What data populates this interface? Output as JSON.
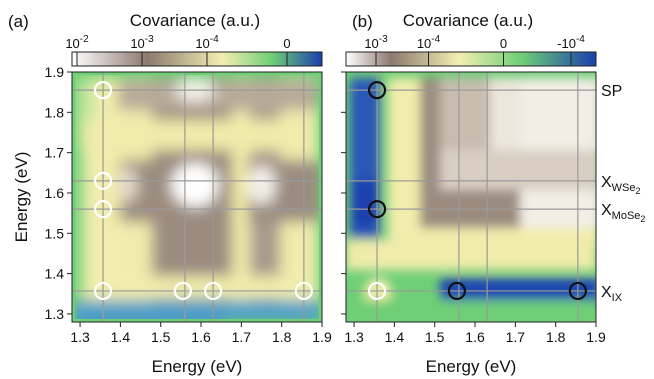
{
  "chart_data": [
    {
      "type": "heatmap",
      "panel_label": "(a)",
      "colorbar": {
        "title": "Covariance (a.u.)",
        "tick_labels": [
          {
            "base": "10",
            "exp": "-2"
          },
          {
            "base": "10",
            "exp": "-3"
          },
          {
            "base": "10",
            "exp": "-4"
          },
          {
            "base": "0",
            "exp": ""
          }
        ],
        "colors": [
          "#ffffff",
          "#8c7a70",
          "#f3eeb2",
          "#6fcf76",
          "#1a3fae"
        ]
      },
      "xlabel": "Energy (eV)",
      "ylabel": "Energy (eV)",
      "xlim": [
        1.28,
        1.9
      ],
      "ylim": [
        1.28,
        1.9
      ],
      "xticks": [
        "1.3",
        "1.4",
        "1.5",
        "1.6",
        "1.7",
        "1.8",
        "1.9"
      ],
      "yticks": [
        "1.3",
        "1.4",
        "1.5",
        "1.6",
        "1.7",
        "1.8",
        "1.9"
      ],
      "grid_lines": [
        1.357,
        1.56,
        1.63,
        1.855
      ],
      "markers": [
        {
          "x": 1.357,
          "y": 1.855,
          "style": "white"
        },
        {
          "x": 1.357,
          "y": 1.63,
          "style": "white"
        },
        {
          "x": 1.357,
          "y": 1.56,
          "style": "white"
        },
        {
          "x": 1.357,
          "y": 1.357,
          "style": "white"
        },
        {
          "x": 1.555,
          "y": 1.357,
          "style": "white"
        },
        {
          "x": 1.63,
          "y": 1.357,
          "style": "white"
        },
        {
          "x": 1.855,
          "y": 1.357,
          "style": "white"
        }
      ]
    },
    {
      "type": "heatmap",
      "panel_label": "(b)",
      "colorbar": {
        "title": "Covariance (a.u.)",
        "tick_labels": [
          {
            "base": "10",
            "exp": "-3"
          },
          {
            "base": "10",
            "exp": "-4"
          },
          {
            "base": "0",
            "exp": ""
          },
          {
            "base": "-10",
            "exp": "-4"
          }
        ],
        "colors": [
          "#ffffff",
          "#8c7a70",
          "#f3eeb2",
          "#6fcf76",
          "#1a3fae"
        ]
      },
      "xlabel": "Energy (eV)",
      "ylabel": "",
      "xlim": [
        1.28,
        1.9
      ],
      "ylim": [
        1.28,
        1.9
      ],
      "xticks": [
        "1.3",
        "1.4",
        "1.5",
        "1.6",
        "1.7",
        "1.8",
        "1.9"
      ],
      "grid_lines": [
        1.357,
        1.56,
        1.63,
        1.855
      ],
      "markers": [
        {
          "x": 1.357,
          "y": 1.855,
          "style": "black"
        },
        {
          "x": 1.357,
          "y": 1.56,
          "style": "black"
        },
        {
          "x": 1.357,
          "y": 1.357,
          "style": "white"
        },
        {
          "x": 1.555,
          "y": 1.357,
          "style": "black"
        },
        {
          "x": 1.855,
          "y": 1.357,
          "style": "black"
        }
      ],
      "exciton_labels": [
        {
          "main": "SP",
          "sub": "",
          "sub2": "",
          "y": 1.855
        },
        {
          "main": "X",
          "sub": "WSe",
          "sub2": "2",
          "y": 1.63
        },
        {
          "main": "X",
          "sub": "MoSe",
          "sub2": "2",
          "y": 1.56
        },
        {
          "main": "X",
          "sub": "IX",
          "sub2": "",
          "y": 1.357
        }
      ]
    }
  ]
}
